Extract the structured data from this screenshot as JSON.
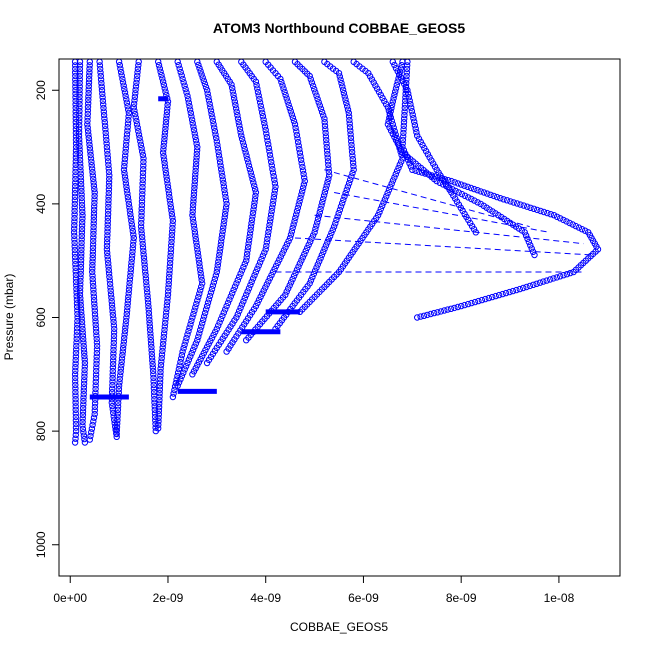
{
  "chart_data": {
    "type": "scatter",
    "title": "ATOM3 Northbound COBBAE_GEOS5",
    "xlabel": "COBBAE_GEOS5",
    "ylabel": "Pressure (mbar)",
    "xlim": [
      -2.3e-10,
      1.125e-08
    ],
    "ylim": [
      1055,
      145
    ],
    "y_reversed": true,
    "x_ticks": [
      0,
      2e-09,
      4e-09,
      6e-09,
      8e-09,
      1e-08
    ],
    "x_tick_labels": [
      "0e+00",
      "2e-09",
      "4e-09",
      "6e-09",
      "8e-09",
      "1e-08"
    ],
    "y_ticks": [
      200,
      400,
      600,
      800,
      1000
    ],
    "y_tick_labels": [
      "200",
      "400",
      "600",
      "800",
      "1000"
    ],
    "marker": "open-circle",
    "color": "#0000ff",
    "grid": false,
    "legend": "none",
    "profiles": [
      {
        "x": [
          1e-10,
          1.2e-10,
          8e-11,
          1.5e-10,
          1e-10,
          1.2e-10,
          1e-10
        ],
        "y": [
          150,
          300,
          450,
          600,
          700,
          800,
          820
        ]
      },
      {
        "x": [
          2e-10,
          1.8e-10,
          2.5e-10,
          2e-10,
          3e-10,
          2.5e-10,
          3e-10
        ],
        "y": [
          150,
          280,
          420,
          560,
          680,
          790,
          820
        ]
      },
      {
        "x": [
          4e-10,
          3.5e-10,
          5e-10,
          4.5e-10,
          5.5e-10,
          5e-10,
          4e-10
        ],
        "y": [
          150,
          260,
          380,
          520,
          650,
          770,
          815
        ]
      },
      {
        "x": [
          6e-10,
          7e-10,
          8e-10,
          7.5e-10,
          9e-10,
          8.5e-10,
          9.5e-10
        ],
        "y": [
          150,
          250,
          350,
          480,
          620,
          750,
          810
        ]
      },
      {
        "x": [
          1e-09,
          1.2e-09,
          1.1e-09,
          1.3e-09,
          1.15e-09,
          1e-09,
          9.5e-10
        ],
        "y": [
          150,
          240,
          340,
          460,
          600,
          720,
          805
        ]
      },
      {
        "x": [
          1.4e-09,
          1.3e-09,
          1.5e-09,
          1.45e-09,
          1.6e-09,
          1.7e-09,
          1.75e-09
        ],
        "y": [
          150,
          230,
          320,
          440,
          580,
          700,
          800
        ]
      },
      {
        "x": [
          1.8e-09,
          2e-09,
          1.9e-09,
          2.1e-09,
          2e-09,
          1.85e-09,
          1.8e-09
        ],
        "y": [
          150,
          220,
          310,
          430,
          560,
          690,
          795
        ]
      },
      {
        "x": [
          2.2e-09,
          2.4e-09,
          2.6e-09,
          2.5e-09,
          2.7e-09,
          2.3e-09,
          2.1e-09
        ],
        "y": [
          150,
          210,
          300,
          420,
          540,
          660,
          740
        ]
      },
      {
        "x": [
          2.6e-09,
          2.8e-09,
          3e-09,
          3.2e-09,
          3e-09,
          2.6e-09,
          2.2e-09
        ],
        "y": [
          150,
          200,
          290,
          400,
          520,
          640,
          720
        ]
      },
      {
        "x": [
          3e-09,
          3.3e-09,
          3.5e-09,
          3.8e-09,
          3.6e-09,
          3e-09,
          2.5e-09
        ],
        "y": [
          150,
          190,
          280,
          380,
          500,
          620,
          700
        ]
      },
      {
        "x": [
          3.5e-09,
          3.8e-09,
          4e-09,
          4.2e-09,
          4e-09,
          3.4e-09,
          2.8e-09
        ],
        "y": [
          150,
          185,
          270,
          370,
          480,
          600,
          680
        ]
      },
      {
        "x": [
          4e-09,
          4.3e-09,
          4.6e-09,
          4.8e-09,
          4.5e-09,
          3.8e-09,
          3.2e-09
        ],
        "y": [
          150,
          180,
          260,
          360,
          460,
          580,
          660
        ]
      },
      {
        "x": [
          4.6e-09,
          4.9e-09,
          5.2e-09,
          5.3e-09,
          5e-09,
          4.4e-09,
          3.6e-09
        ],
        "y": [
          150,
          175,
          250,
          350,
          450,
          560,
          640
        ]
      },
      {
        "x": [
          5.2e-09,
          5.5e-09,
          5.7e-09,
          5.8e-09,
          5.4e-09,
          4.9e-09,
          4.2e-09
        ],
        "y": [
          150,
          170,
          240,
          340,
          440,
          540,
          620
        ]
      },
      {
        "x": [
          5.8e-09,
          6.1e-09,
          6.5e-09,
          6.8e-09,
          6.3e-09,
          5.5e-09,
          4.7e-09
        ],
        "y": [
          150,
          170,
          230,
          320,
          420,
          520,
          590
        ]
      },
      {
        "x": [
          6.6e-09,
          6.9e-09,
          7.1e-09,
          7.5e-09,
          7.8e-09,
          8.3e-09
        ],
        "y": [
          150,
          200,
          280,
          340,
          380,
          450
        ]
      },
      {
        "x": [
          6.8e-09,
          6.6e-09,
          6.5e-09,
          6.8e-09,
          7.5e-09,
          8.4e-09,
          9.3e-09,
          9.5e-09
        ],
        "y": [
          150,
          220,
          260,
          310,
          360,
          400,
          450,
          490
        ]
      },
      {
        "x": [
          6.9e-09,
          6.8e-09,
          7e-09,
          7.8e-09,
          8.8e-09,
          9.9e-09,
          1.06e-08,
          1.08e-08,
          1.03e-08,
          9.2e-09,
          8e-09,
          7.1e-09
        ],
        "y": [
          150,
          300,
          340,
          360,
          390,
          420,
          450,
          480,
          520,
          550,
          580,
          600
        ]
      }
    ],
    "connections": [
      {
        "x": [
          5.2e-09,
          9.4e-09
        ],
        "y": [
          340,
          440
        ]
      },
      {
        "x": [
          5.4e-09,
          9.8e-09
        ],
        "y": [
          380,
          450
        ]
      },
      {
        "x": [
          5e-09,
          1.05e-08
        ],
        "y": [
          420,
          470
        ]
      },
      {
        "x": [
          4.6e-09,
          1.07e-08
        ],
        "y": [
          460,
          490
        ]
      },
      {
        "x": [
          4.2e-09,
          1.05e-08
        ],
        "y": [
          520,
          520
        ]
      }
    ],
    "bold_segments": [
      {
        "x": [
          3.5e-09,
          4.3e-09
        ],
        "y": [
          625,
          625
        ]
      },
      {
        "x": [
          4e-09,
          4.7e-09
        ],
        "y": [
          590,
          590
        ]
      },
      {
        "x": [
          1.8e-09,
          2e-09
        ],
        "y": [
          215,
          215
        ]
      },
      {
        "x": [
          2.2e-09,
          3e-09
        ],
        "y": [
          730,
          730
        ]
      },
      {
        "x": [
          4e-10,
          1.2e-09
        ],
        "y": [
          740,
          740
        ]
      }
    ]
  }
}
